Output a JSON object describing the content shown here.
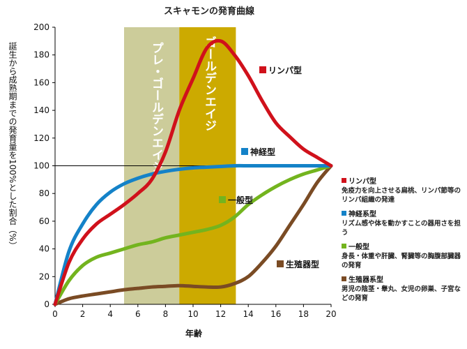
{
  "chart_data": {
    "type": "line",
    "title": "スキャモンの発育曲線",
    "xlabel": "年齢",
    "ylabel": "誕生から成熟期までの発育量を100%とした割合（%）",
    "xlim": [
      0,
      20
    ],
    "ylim": [
      0,
      200
    ],
    "x_ticks": [
      0,
      2,
      4,
      6,
      8,
      10,
      12,
      14,
      16,
      18,
      20
    ],
    "y_ticks": [
      0,
      20,
      40,
      60,
      80,
      100,
      120,
      140,
      160,
      180,
      200
    ],
    "grid": false,
    "reference_line": 100,
    "bands": [
      {
        "label": "プレ・ゴールデンエイジ",
        "x_start": 5,
        "x_end": 9,
        "color": "#cccc9a"
      },
      {
        "label": "ゴールデンエイジ",
        "x_start": 9,
        "x_end": 13.1,
        "color": "#ccaa00"
      }
    ],
    "series": [
      {
        "name": "リンパ型",
        "color": "#d0111b",
        "x": [
          0,
          1,
          2,
          3,
          4,
          5,
          6,
          7,
          8,
          9,
          10,
          11,
          12,
          13,
          14,
          15,
          16,
          17,
          18,
          19,
          20
        ],
        "y": [
          0,
          30,
          47,
          58,
          65,
          72,
          80,
          90,
          110,
          140,
          163,
          185,
          190,
          180,
          165,
          147,
          131,
          121,
          112,
          106,
          100
        ]
      },
      {
        "name": "神経型",
        "color": "#1482c8",
        "x": [
          0,
          1,
          2,
          3,
          4,
          5,
          6,
          7,
          8,
          9,
          10,
          11,
          12,
          13,
          14,
          15,
          16,
          17,
          18,
          19,
          20
        ],
        "y": [
          0,
          38,
          58,
          72,
          81,
          87,
          91,
          94,
          96,
          97.5,
          98.5,
          99,
          99.5,
          100,
          100,
          100,
          100,
          100,
          100,
          100,
          100
        ]
      },
      {
        "name": "一般型",
        "color": "#73b41e",
        "x": [
          0,
          1,
          2,
          3,
          4,
          5,
          6,
          7,
          8,
          9,
          10,
          11,
          12,
          13,
          14,
          15,
          16,
          17,
          18,
          19,
          20
        ],
        "y": [
          0,
          17,
          28,
          34,
          37,
          40,
          43,
          45,
          48,
          50,
          52,
          54,
          57,
          63,
          72,
          79,
          85,
          90,
          94,
          97,
          100
        ]
      },
      {
        "name": "生殖器型",
        "color": "#7a4b24",
        "x": [
          0,
          1,
          2,
          3,
          4,
          5,
          6,
          7,
          8,
          9,
          10,
          11,
          12,
          13,
          14,
          15,
          16,
          17,
          18,
          19,
          20
        ],
        "y": [
          0,
          4,
          6,
          7.5,
          9,
          10.5,
          11.5,
          12.5,
          13,
          13.5,
          13,
          12.5,
          12.5,
          15,
          20,
          30,
          42,
          57,
          72,
          88,
          100
        ]
      }
    ],
    "legend": [
      {
        "name": "リンパ型",
        "color": "#d0111b",
        "description": "免疫力を向上させる扁桃、リンパ節等のリンパ組織の発達"
      },
      {
        "name": "神経系型",
        "color": "#1482c8",
        "description": "リズム感や体を動かすことの器用さを担う"
      },
      {
        "name": "一般型",
        "color": "#73b41e",
        "description": "身長・体重や肝臓、腎臓等の胸腹部臓器の発育"
      },
      {
        "name": "生殖器系型",
        "color": "#7a4b24",
        "description": "男児の陰茎・睾丸、女児の卵巣、子宮などの発育"
      }
    ]
  }
}
